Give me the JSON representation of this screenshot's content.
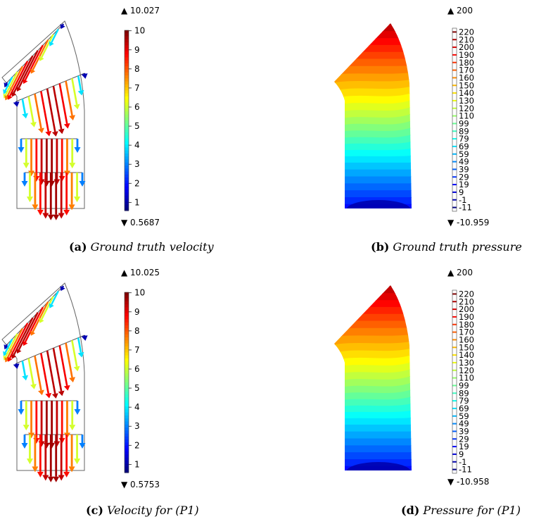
{
  "panels": [
    {
      "id": "a",
      "kind": "velocity",
      "caption_tag": "(a)",
      "caption_text": "Ground truth velocity",
      "max_label": "▲ 10.027",
      "min_label": "▼ 0.5687",
      "colorbar_ticks": [
        "10",
        "9",
        "8",
        "7",
        "6",
        "5",
        "4",
        "3",
        "2",
        "1"
      ]
    },
    {
      "id": "b",
      "kind": "pressure",
      "caption_tag": "(b)",
      "caption_text": "Ground truth pressure",
      "max_label": "▲ 200",
      "min_label": "▼ -10.959",
      "colorbar_ticks": [
        "220",
        "210",
        "200",
        "190",
        "180",
        "170",
        "160",
        "150",
        "140",
        "130",
        "120",
        "110",
        "99",
        "89",
        "79",
        "69",
        "59",
        "49",
        "39",
        "29",
        "19",
        "9",
        "-1",
        "-11"
      ]
    },
    {
      "id": "c",
      "kind": "velocity",
      "caption_tag": "(c)",
      "caption_text": "Velocity for (P1)",
      "max_label": "▲ 10.025",
      "min_label": "▼ 0.5753",
      "colorbar_ticks": [
        "10",
        "9",
        "8",
        "7",
        "6",
        "5",
        "4",
        "3",
        "2",
        "1"
      ]
    },
    {
      "id": "d",
      "kind": "pressure",
      "caption_tag": "(d)",
      "caption_text": "Pressure for (P1)",
      "max_label": "▲ 200",
      "min_label": "▼ -10.958",
      "colorbar_ticks": [
        "220",
        "210",
        "200",
        "190",
        "180",
        "170",
        "160",
        "150",
        "140",
        "130",
        "120",
        "110",
        "99",
        "89",
        "79",
        "69",
        "59",
        "49",
        "39",
        "29",
        "19",
        "9",
        "-1",
        "-11"
      ]
    }
  ],
  "colormap": [
    "#00007f",
    "#0000ff",
    "#007fff",
    "#00ffff",
    "#7fff7f",
    "#ffff00",
    "#ff7f00",
    "#ff0000",
    "#7f0000"
  ]
}
